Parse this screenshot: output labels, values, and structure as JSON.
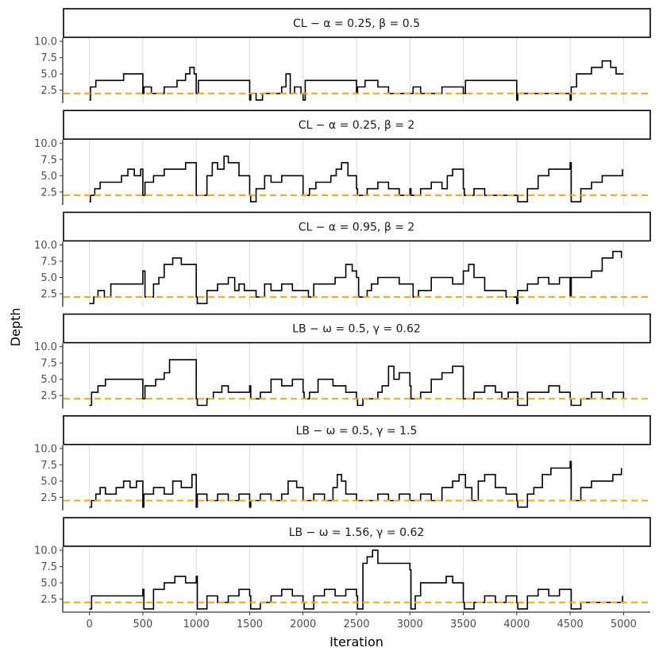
{
  "chart_data": {
    "type": "line",
    "style": "step",
    "xlabel": "Iteration",
    "ylabel": "Depth",
    "xlim": [
      -250,
      5250
    ],
    "ylim": [
      0.5,
      10.5
    ],
    "x_ticks": [
      0,
      500,
      1000,
      1500,
      2000,
      2500,
      3000,
      3500,
      4000,
      4500,
      5000
    ],
    "y_ticks": [
      "2.5",
      "5.0",
      "7.5",
      "10.0"
    ],
    "y_tick_values": [
      2.5,
      5.0,
      7.5,
      10.0
    ],
    "grid": "vertical",
    "reference_line": {
      "y": 2,
      "color": "#FFA500",
      "style": "dashed"
    },
    "series_color": "#000000",
    "panels": [
      {
        "label": "CL − α = 0.25, β = 0.5",
        "x": [
          0,
          10,
          60,
          300,
          320,
          500,
          510,
          580,
          700,
          820,
          900,
          940,
          980,
          1000,
          1020,
          1100,
          1300,
          1500,
          1510,
          1560,
          1620,
          1700,
          1800,
          1840,
          1880,
          1920,
          1980,
          2000,
          2020,
          2200,
          2500,
          2510,
          2580,
          2700,
          2800,
          2900,
          3000,
          3030,
          3100,
          3300,
          3400,
          3500,
          3520,
          3600,
          3700,
          3800,
          4000,
          4010,
          4200,
          4500,
          4510,
          4560,
          4700,
          4800,
          4880,
          4930,
          5000
        ],
        "y": [
          1,
          3,
          4,
          4,
          5,
          2,
          3,
          2,
          3,
          4,
          5,
          6,
          5,
          2,
          4,
          4,
          4,
          1,
          2,
          1,
          2,
          2,
          3,
          5,
          2,
          3,
          2,
          1,
          4,
          4,
          2,
          3,
          4,
          3,
          2,
          2,
          2,
          3,
          2,
          3,
          3,
          2,
          4,
          4,
          4,
          4,
          1,
          2,
          2,
          1,
          3,
          5,
          6,
          7,
          6,
          5,
          5
        ]
      },
      {
        "label": "CL − α = 0.25, β = 2",
        "x": [
          0,
          10,
          50,
          100,
          200,
          300,
          360,
          420,
          480,
          500,
          520,
          600,
          700,
          900,
          1000,
          1010,
          1100,
          1150,
          1200,
          1260,
          1300,
          1400,
          1500,
          1510,
          1560,
          1640,
          1700,
          1800,
          1900,
          2000,
          2010,
          2060,
          2120,
          2180,
          2260,
          2310,
          2360,
          2420,
          2500,
          2510,
          2600,
          2700,
          2800,
          2900,
          3000,
          3010,
          3100,
          3200,
          3300,
          3350,
          3400,
          3500,
          3510,
          3600,
          3700,
          3800,
          3900,
          4000,
          4010,
          4100,
          4200,
          4300,
          4500,
          4510,
          4600,
          4700,
          4800,
          4900,
          4990
        ],
        "y": [
          1,
          2,
          3,
          4,
          4,
          5,
          6,
          5,
          6,
          2,
          4,
          5,
          6,
          7,
          2,
          2,
          5,
          7,
          6,
          8,
          7,
          5,
          2,
          1,
          3,
          5,
          4,
          5,
          5,
          2,
          2,
          3,
          4,
          4,
          5,
          6,
          7,
          5,
          3,
          2,
          3,
          4,
          3,
          2,
          3,
          2,
          3,
          4,
          3,
          5,
          6,
          3,
          2,
          3,
          2,
          2,
          2,
          2,
          1,
          3,
          5,
          6,
          7,
          1,
          3,
          4,
          5,
          5,
          6
        ]
      },
      {
        "label": "CL − α = 0.95, β = 2",
        "x": [
          0,
          40,
          80,
          140,
          200,
          500,
          520,
          600,
          650,
          700,
          780,
          860,
          1000,
          1010,
          1100,
          1200,
          1300,
          1360,
          1400,
          1450,
          1500,
          1560,
          1640,
          1700,
          1800,
          1900,
          2000,
          2050,
          2100,
          2200,
          2300,
          2400,
          2460,
          2500,
          2520,
          2600,
          2640,
          2700,
          2800,
          2900,
          3000,
          3030,
          3080,
          3200,
          3300,
          3400,
          3500,
          3550,
          3600,
          3700,
          3800,
          3900,
          4000,
          4010,
          4100,
          4200,
          4300,
          4400,
          4500,
          4510,
          4700,
          4800,
          4900,
          4980
        ],
        "y": [
          1,
          2,
          3,
          2,
          4,
          6,
          2,
          4,
          5,
          7,
          8,
          7,
          2,
          1,
          3,
          4,
          5,
          3,
          4,
          3,
          3,
          2,
          4,
          3,
          4,
          3,
          3,
          2,
          4,
          4,
          5,
          7,
          6,
          5,
          2,
          3,
          4,
          5,
          5,
          4,
          4,
          2,
          3,
          5,
          5,
          4,
          6,
          7,
          5,
          3,
          3,
          2,
          1,
          3,
          4,
          5,
          4,
          5,
          2,
          5,
          6,
          8,
          9,
          8
        ]
      },
      {
        "label": "LB − ω = 0.5, γ = 0.62",
        "x": [
          0,
          20,
          80,
          150,
          300,
          500,
          520,
          620,
          700,
          750,
          1000,
          1010,
          1100,
          1160,
          1240,
          1300,
          1500,
          1510,
          1600,
          1700,
          1800,
          1900,
          2000,
          2010,
          2060,
          2140,
          2280,
          2400,
          2500,
          2510,
          2560,
          2600,
          2700,
          2740,
          2800,
          2850,
          2900,
          3000,
          3010,
          3100,
          3200,
          3300,
          3400,
          3500,
          3510,
          3600,
          3700,
          3800,
          3860,
          3920,
          4000,
          4010,
          4100,
          4200,
          4300,
          4400,
          4500,
          4510,
          4600,
          4700,
          4800,
          4900,
          5000
        ],
        "y": [
          1,
          3,
          4,
          5,
          5,
          2,
          4,
          5,
          6,
          8,
          2,
          1,
          2,
          3,
          4,
          3,
          4,
          2,
          3,
          5,
          4,
          5,
          3,
          2,
          3,
          5,
          4,
          3,
          2,
          1,
          2,
          2,
          3,
          4,
          7,
          5,
          6,
          4,
          2,
          3,
          5,
          6,
          7,
          2,
          2,
          3,
          4,
          3,
          2,
          3,
          3,
          1,
          3,
          3,
          4,
          3,
          2,
          1,
          2,
          3,
          2,
          3,
          2
        ]
      },
      {
        "label": "LB − ω = 0.5, γ = 1.5",
        "x": [
          0,
          20,
          60,
          100,
          150,
          250,
          320,
          380,
          440,
          500,
          510,
          600,
          700,
          780,
          860,
          960,
          1000,
          1010,
          1100,
          1200,
          1300,
          1400,
          1500,
          1510,
          1600,
          1700,
          1800,
          1860,
          1940,
          2000,
          2010,
          2100,
          2200,
          2280,
          2320,
          2360,
          2400,
          2500,
          2510,
          2600,
          2700,
          2800,
          2900,
          3000,
          3010,
          3100,
          3200,
          3300,
          3400,
          3460,
          3520,
          3580,
          3640,
          3700,
          3800,
          3900,
          4000,
          4010,
          4100,
          4160,
          4240,
          4320,
          4500,
          4510,
          4600,
          4700,
          4800,
          4900,
          4980
        ],
        "y": [
          1,
          2,
          3,
          4,
          3,
          4,
          5,
          4,
          5,
          1,
          3,
          4,
          3,
          5,
          4,
          6,
          1,
          3,
          2,
          3,
          2,
          3,
          1,
          2,
          3,
          2,
          3,
          5,
          4,
          2,
          2,
          3,
          2,
          4,
          6,
          5,
          3,
          2,
          2,
          2,
          3,
          2,
          3,
          2,
          2,
          3,
          2,
          4,
          5,
          6,
          4,
          2,
          5,
          6,
          4,
          3,
          2,
          1,
          3,
          4,
          6,
          7,
          8,
          2,
          4,
          5,
          5,
          6,
          7
        ]
      },
      {
        "label": "LB − ω = 1.56, γ = 0.62",
        "x": [
          0,
          20,
          250,
          300,
          500,
          510,
          600,
          700,
          800,
          900,
          1000,
          1010,
          1100,
          1200,
          1300,
          1400,
          1500,
          1510,
          1600,
          1700,
          1800,
          1900,
          2000,
          2010,
          2100,
          2200,
          2300,
          2400,
          2500,
          2510,
          2560,
          2600,
          2650,
          2700,
          3000,
          3010,
          3050,
          3100,
          3200,
          3300,
          3340,
          3400,
          3500,
          3510,
          3600,
          3700,
          3800,
          3900,
          4000,
          4010,
          4100,
          4200,
          4300,
          4400,
          4500,
          4510,
          4600,
          4700,
          4800,
          4900,
          4990
        ],
        "y": [
          1,
          3,
          3,
          3,
          4,
          1,
          4,
          5,
          6,
          5,
          6,
          1,
          3,
          2,
          3,
          4,
          3,
          1,
          2,
          3,
          4,
          3,
          2,
          1,
          3,
          4,
          3,
          4,
          3,
          1,
          8,
          9,
          10,
          8,
          7,
          1,
          3,
          5,
          5,
          5,
          6,
          5,
          2,
          1,
          2,
          3,
          2,
          3,
          2,
          1,
          3,
          4,
          3,
          4,
          4,
          1,
          2,
          2,
          2,
          2,
          3
        ]
      }
    ]
  }
}
